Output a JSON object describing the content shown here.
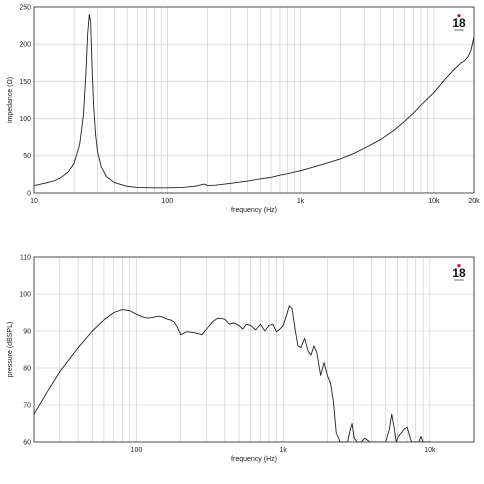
{
  "brand": {
    "logo_number": "18",
    "logo_text": "SOUND",
    "accent_color": "#c8102e"
  },
  "chart_data": [
    {
      "type": "line",
      "xscale": "log",
      "xlim": [
        10,
        20000
      ],
      "ylim": [
        0,
        250
      ],
      "xlabel": "frequency (Hz)",
      "ylabel": "impedance (Ω)",
      "x_ticks": [
        10,
        100,
        1000,
        10000,
        20000
      ],
      "x_tick_labels": [
        "10",
        "100",
        "1k",
        "10k",
        "20k"
      ],
      "y_ticks": [
        0,
        50,
        100,
        150,
        200,
        250
      ],
      "y_tick_labels": [
        "0",
        "50",
        "100",
        "150",
        "200",
        "250"
      ],
      "grid": true,
      "series": [
        {
          "x": [
            10,
            12,
            14,
            16,
            18,
            20,
            22,
            23.5,
            24.5,
            25.3,
            26,
            26.6,
            27.2,
            28,
            29,
            30,
            32,
            35,
            40,
            50,
            60,
            80,
            100,
            130,
            160,
            180,
            190,
            200,
            230,
            300,
            400,
            500,
            600,
            700,
            800,
            1000,
            1200,
            1500,
            2000,
            2500,
            3000,
            4000,
            5000,
            6000,
            7000,
            8000,
            10000,
            12000,
            14000,
            16000,
            17000,
            18000,
            19000,
            20000
          ],
          "y": [
            10,
            13,
            16,
            21,
            28,
            40,
            65,
            105,
            160,
            215,
            240,
            230,
            175,
            118,
            78,
            55,
            35,
            22,
            14,
            9,
            7.5,
            7,
            7,
            7.5,
            9,
            11,
            12,
            10,
            10.5,
            13,
            16,
            19,
            21,
            24,
            26,
            30,
            34,
            39,
            46,
            53,
            60,
            72,
            84,
            96,
            107,
            118,
            135,
            152,
            165,
            175,
            178,
            183,
            192,
            210
          ]
        }
      ]
    },
    {
      "type": "line",
      "xscale": "log",
      "xlim": [
        20,
        20000
      ],
      "ylim": [
        60,
        110
      ],
      "xlabel": "frequency (Hz)",
      "ylabel": "pressure (dBSPL)",
      "x_ticks": [
        100,
        1000,
        10000
      ],
      "x_tick_labels": [
        "100",
        "1k",
        "10k"
      ],
      "y_ticks": [
        60,
        70,
        80,
        90,
        100,
        110
      ],
      "y_tick_labels": [
        "60",
        "70",
        "80",
        "90",
        "100",
        "110"
      ],
      "grid": true,
      "series": [
        {
          "x": [
            20,
            25,
            30,
            40,
            50,
            60,
            70,
            80,
            90,
            100,
            110,
            120,
            130,
            140,
            150,
            160,
            170,
            180,
            190,
            200,
            220,
            250,
            280,
            300,
            330,
            360,
            400,
            430,
            460,
            500,
            530,
            560,
            600,
            650,
            700,
            750,
            800,
            850,
            900,
            950,
            1000,
            1050,
            1100,
            1150,
            1200,
            1260,
            1320,
            1400,
            1480,
            1550,
            1620,
            1700,
            1800,
            1900,
            2000,
            2100,
            2200,
            2300,
            2450,
            2600,
            2750,
            2850,
            2950,
            3050,
            3200,
            3400,
            3600,
            3900,
            4200,
            4600,
            5000,
            5300,
            5500,
            5700,
            5900,
            6100,
            6400,
            6700,
            7000,
            7300,
            7500,
            7800,
            8100,
            8400,
            8700,
            9000,
            9500,
            10000
          ],
          "y": [
            67.5,
            74,
            79,
            85.5,
            90,
            93,
            95,
            95.8,
            95.5,
            94.5,
            93.8,
            93.5,
            93.7,
            94,
            93.8,
            93.3,
            93,
            92.5,
            91,
            89,
            89.8,
            89.5,
            89,
            90.5,
            92.5,
            93.5,
            93.2,
            91.8,
            92.2,
            91.5,
            90.5,
            91.8,
            91.5,
            90.3,
            91.8,
            90,
            91.5,
            91.8,
            89.8,
            90.5,
            91.5,
            94,
            96.8,
            96,
            91,
            86,
            85.5,
            88,
            84.5,
            83.5,
            86,
            84,
            78,
            81.5,
            78,
            76,
            71,
            62.5,
            58,
            56,
            58,
            63,
            65,
            61,
            57,
            56,
            61,
            57.5,
            55,
            54,
            57,
            63.5,
            67.5,
            64,
            60,
            61.5,
            62.5,
            63.5,
            64,
            61.5,
            57,
            55,
            56,
            60,
            61.5,
            58,
            55,
            54
          ]
        }
      ]
    }
  ]
}
